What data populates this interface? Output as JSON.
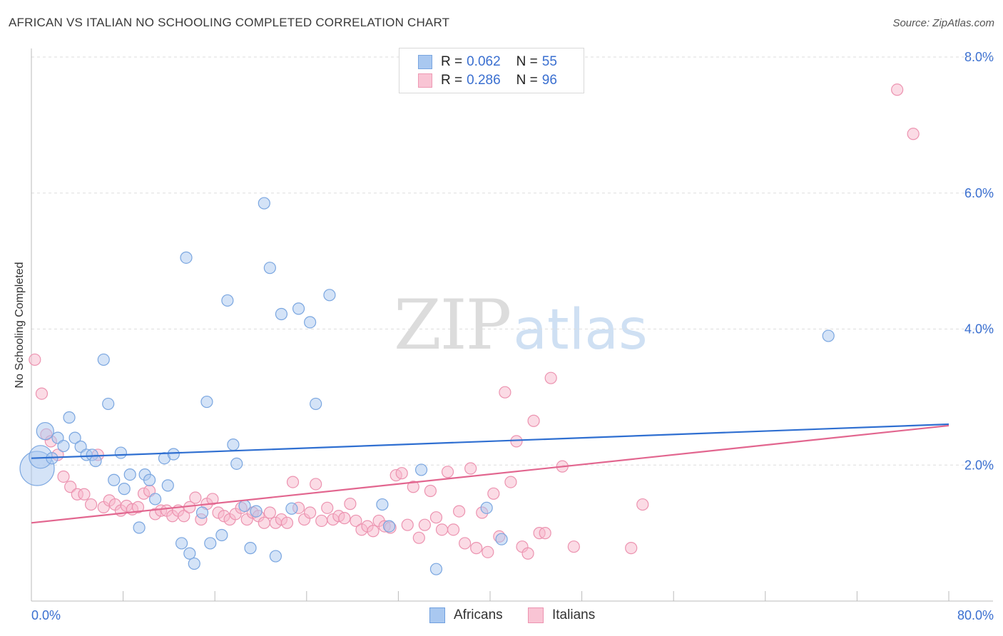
{
  "title": "AFRICAN VS ITALIAN NO SCHOOLING COMPLETED CORRELATION CHART",
  "source": "Source: ZipAtlas.com",
  "watermark": {
    "zip": "ZIP",
    "atlas": "atlas"
  },
  "legend": {
    "rows": [
      {
        "r_label": "R =",
        "r_value": "0.062",
        "n_label": "N =",
        "n_value": "55",
        "color": "#a9c8f0",
        "border": "#7aa6e0"
      },
      {
        "r_label": "R =",
        "r_value": "0.286",
        "n_label": "N =",
        "n_value": "96",
        "color": "#f9c4d4",
        "border": "#ee9ab4"
      }
    ],
    "bottom": [
      {
        "label": "Africans",
        "color": "#a9c8f0",
        "border": "#6f9fdf"
      },
      {
        "label": "Italians",
        "color": "#f9c4d4",
        "border": "#ec93b0"
      }
    ]
  },
  "colors": {
    "africans_fill": "#a9c8f0",
    "africans_stroke": "#7aa6e0",
    "africans_line": "#2f6fd1",
    "italians_fill": "#f7b8cc",
    "italians_stroke": "#ec93b0",
    "italians_line": "#e2668f",
    "tick_label": "#3a6fd0",
    "grid": "#dddddd"
  },
  "chart_data": {
    "type": "scatter",
    "title": "AFRICAN VS ITALIAN NO SCHOOLING COMPLETED CORRELATION CHART",
    "xlabel": "",
    "ylabel": "No Schooling Completed",
    "xlim": [
      0,
      80
    ],
    "ylim": [
      0,
      8.0
    ],
    "x_tick_labels": [
      "0.0%",
      "80.0%"
    ],
    "y_ticks": [
      2.0,
      4.0,
      6.0,
      8.0
    ],
    "y_tick_labels": [
      "2.0%",
      "4.0%",
      "6.0%",
      "8.0%"
    ],
    "grid": "horizontal dashed",
    "series": [
      {
        "name": "Africans",
        "r": 0.062,
        "n": 55,
        "trend": [
          [
            0,
            2.1
          ],
          [
            80,
            2.6
          ]
        ],
        "points": [
          [
            0.5,
            1.95,
            3
          ],
          [
            0.8,
            2.12,
            2
          ],
          [
            1.2,
            2.5,
            1.5
          ],
          [
            1.8,
            2.1,
            1
          ],
          [
            2.3,
            2.4,
            1
          ],
          [
            2.8,
            2.28,
            1
          ],
          [
            3.3,
            2.7,
            1
          ],
          [
            3.8,
            2.4,
            1
          ],
          [
            4.3,
            2.27,
            1
          ],
          [
            4.8,
            2.15,
            1
          ],
          [
            5.3,
            2.15,
            1
          ],
          [
            5.6,
            2.06,
            1
          ],
          [
            6.3,
            3.55,
            1
          ],
          [
            6.7,
            2.9,
            1
          ],
          [
            7.2,
            1.78,
            1
          ],
          [
            7.8,
            2.18,
            1
          ],
          [
            8.1,
            1.65,
            1
          ],
          [
            8.6,
            1.86,
            1
          ],
          [
            9.4,
            1.08,
            1
          ],
          [
            9.9,
            1.86,
            1
          ],
          [
            10.3,
            1.78,
            1
          ],
          [
            10.8,
            1.5,
            1
          ],
          [
            11.6,
            2.1,
            1
          ],
          [
            11.9,
            1.7,
            1
          ],
          [
            12.4,
            2.16,
            1
          ],
          [
            13.1,
            0.85,
            1
          ],
          [
            13.5,
            5.05,
            1
          ],
          [
            13.8,
            0.7,
            1
          ],
          [
            14.2,
            0.55,
            1
          ],
          [
            14.9,
            1.3,
            1
          ],
          [
            15.3,
            2.93,
            1
          ],
          [
            15.6,
            0.85,
            1
          ],
          [
            16.6,
            0.97,
            1
          ],
          [
            17.1,
            4.42,
            1
          ],
          [
            17.6,
            2.3,
            1
          ],
          [
            17.9,
            2.02,
            1
          ],
          [
            18.6,
            1.4,
            1
          ],
          [
            19.1,
            0.78,
            1
          ],
          [
            19.6,
            1.32,
            1
          ],
          [
            20.3,
            5.85,
            1
          ],
          [
            20.8,
            4.9,
            1
          ],
          [
            21.3,
            0.66,
            1
          ],
          [
            21.8,
            4.22,
            1
          ],
          [
            22.7,
            1.36,
            1
          ],
          [
            23.3,
            4.3,
            1
          ],
          [
            24.3,
            4.1,
            1
          ],
          [
            24.8,
            2.9,
            1
          ],
          [
            26.0,
            4.5,
            1
          ],
          [
            30.6,
            1.42,
            1
          ],
          [
            31.2,
            1.1,
            1
          ],
          [
            34.0,
            1.93,
            1
          ],
          [
            35.3,
            0.47,
            1
          ],
          [
            39.7,
            1.37,
            1
          ],
          [
            41.0,
            0.91,
            1
          ],
          [
            69.5,
            3.9,
            1
          ]
        ]
      },
      {
        "name": "Italians",
        "r": 0.286,
        "n": 96,
        "trend": [
          [
            0,
            1.15
          ],
          [
            80,
            2.58
          ]
        ],
        "points": [
          [
            0.3,
            3.55,
            1
          ],
          [
            0.9,
            3.05,
            1
          ],
          [
            1.3,
            2.45,
            1
          ],
          [
            1.7,
            2.35,
            1
          ],
          [
            2.3,
            2.15,
            1
          ],
          [
            2.8,
            1.83,
            1
          ],
          [
            3.4,
            1.68,
            1
          ],
          [
            4.0,
            1.57,
            1
          ],
          [
            4.6,
            1.57,
            1
          ],
          [
            5.2,
            1.42,
            1
          ],
          [
            5.8,
            2.15,
            1
          ],
          [
            6.3,
            1.38,
            1
          ],
          [
            6.8,
            1.48,
            1
          ],
          [
            7.3,
            1.42,
            1
          ],
          [
            7.8,
            1.33,
            1
          ],
          [
            8.3,
            1.4,
            1
          ],
          [
            8.8,
            1.35,
            1
          ],
          [
            9.3,
            1.38,
            1
          ],
          [
            9.8,
            1.58,
            1
          ],
          [
            10.3,
            1.62,
            1
          ],
          [
            10.8,
            1.28,
            1
          ],
          [
            11.3,
            1.33,
            1
          ],
          [
            11.8,
            1.33,
            1
          ],
          [
            12.3,
            1.25,
            1
          ],
          [
            12.8,
            1.33,
            1
          ],
          [
            13.3,
            1.25,
            1
          ],
          [
            13.8,
            1.38,
            1
          ],
          [
            14.3,
            1.52,
            1
          ],
          [
            14.8,
            1.2,
            1
          ],
          [
            15.3,
            1.43,
            1
          ],
          [
            15.8,
            1.5,
            1
          ],
          [
            16.3,
            1.3,
            1
          ],
          [
            16.8,
            1.25,
            1
          ],
          [
            17.3,
            1.2,
            1
          ],
          [
            17.8,
            1.28,
            1
          ],
          [
            18.3,
            1.37,
            1
          ],
          [
            18.8,
            1.2,
            1
          ],
          [
            19.3,
            1.3,
            1
          ],
          [
            19.8,
            1.25,
            1
          ],
          [
            20.3,
            1.15,
            1
          ],
          [
            20.8,
            1.3,
            1
          ],
          [
            21.3,
            1.15,
            1
          ],
          [
            21.8,
            1.2,
            1
          ],
          [
            22.3,
            1.15,
            1
          ],
          [
            22.8,
            1.75,
            1
          ],
          [
            23.3,
            1.37,
            1
          ],
          [
            23.8,
            1.2,
            1
          ],
          [
            24.3,
            1.3,
            1
          ],
          [
            24.8,
            1.72,
            1
          ],
          [
            25.3,
            1.18,
            1
          ],
          [
            25.8,
            1.37,
            1
          ],
          [
            26.3,
            1.2,
            1
          ],
          [
            26.8,
            1.25,
            1
          ],
          [
            27.3,
            1.22,
            1
          ],
          [
            27.8,
            1.43,
            1
          ],
          [
            28.3,
            1.18,
            1
          ],
          [
            28.8,
            1.05,
            1
          ],
          [
            29.3,
            1.1,
            1
          ],
          [
            29.8,
            1.03,
            1
          ],
          [
            30.3,
            1.18,
            1
          ],
          [
            30.8,
            1.1,
            1
          ],
          [
            31.3,
            1.08,
            1
          ],
          [
            31.8,
            1.85,
            1
          ],
          [
            32.3,
            1.88,
            1
          ],
          [
            32.8,
            1.12,
            1
          ],
          [
            33.3,
            1.68,
            1
          ],
          [
            33.8,
            0.93,
            1
          ],
          [
            34.3,
            1.12,
            1
          ],
          [
            34.8,
            1.62,
            1
          ],
          [
            35.3,
            1.23,
            1
          ],
          [
            35.8,
            1.05,
            1
          ],
          [
            36.3,
            1.9,
            1
          ],
          [
            36.8,
            1.05,
            1
          ],
          [
            37.3,
            1.32,
            1
          ],
          [
            37.8,
            0.85,
            1
          ],
          [
            38.3,
            1.95,
            1
          ],
          [
            38.8,
            0.78,
            1
          ],
          [
            39.3,
            1.3,
            1
          ],
          [
            39.8,
            0.72,
            1
          ],
          [
            40.3,
            1.58,
            1
          ],
          [
            40.8,
            0.95,
            1
          ],
          [
            41.3,
            3.07,
            1
          ],
          [
            41.8,
            1.75,
            1
          ],
          [
            42.3,
            2.35,
            1
          ],
          [
            42.8,
            0.8,
            1
          ],
          [
            43.3,
            0.7,
            1
          ],
          [
            43.8,
            2.65,
            1
          ],
          [
            44.3,
            1.0,
            1
          ],
          [
            44.8,
            1.0,
            1
          ],
          [
            45.3,
            3.28,
            1
          ],
          [
            46.3,
            1.98,
            1
          ],
          [
            47.3,
            0.8,
            1
          ],
          [
            52.3,
            0.78,
            1
          ],
          [
            53.3,
            1.42,
            1
          ],
          [
            75.5,
            7.52,
            1
          ],
          [
            76.9,
            6.87,
            1
          ]
        ]
      }
    ]
  }
}
